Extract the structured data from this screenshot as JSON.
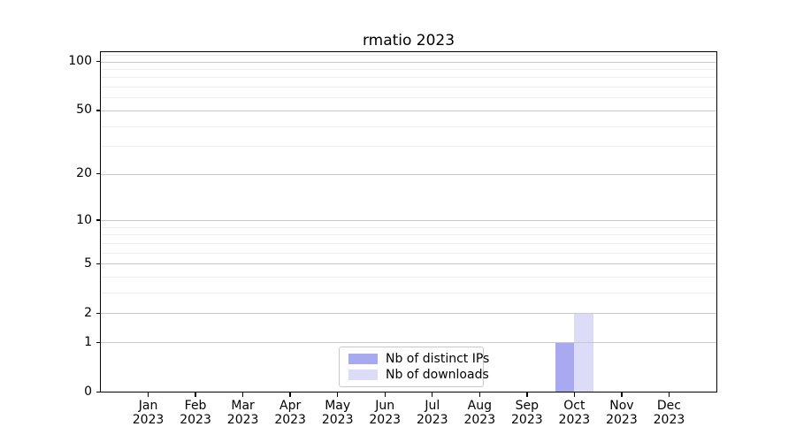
{
  "title": "rmatio 2023",
  "colors": {
    "bar_distinct_ips": "#a9a9f2",
    "bar_downloads": "#dcdcf8",
    "grid_major": "#c9c9c9",
    "grid_minor": "#ededed",
    "spine": "#000000",
    "background": "#ffffff"
  },
  "legend": {
    "position": "lower center",
    "items": [
      {
        "label": "Nb of distinct IPs",
        "color": "#a9a9f2"
      },
      {
        "label": "Nb of downloads",
        "color": "#dcdcf8"
      }
    ]
  },
  "chart_data": {
    "type": "bar",
    "title": "rmatio 2023",
    "categories": [
      "Jan 2023",
      "Feb 2023",
      "Mar 2023",
      "Apr 2023",
      "May 2023",
      "Jun 2023",
      "Jul 2023",
      "Aug 2023",
      "Sep 2023",
      "Oct 2023",
      "Nov 2023",
      "Dec 2023"
    ],
    "x_tick_months": [
      "Jan",
      "Feb",
      "Mar",
      "Apr",
      "May",
      "Jun",
      "Jul",
      "Aug",
      "Sep",
      "Oct",
      "Nov",
      "Dec"
    ],
    "x_tick_year": "2023",
    "series": [
      {
        "name": "Nb of distinct IPs",
        "color": "#a9a9f2",
        "values": [
          0,
          0,
          0,
          0,
          0,
          0,
          0,
          0,
          0,
          1,
          0,
          0
        ]
      },
      {
        "name": "Nb of downloads",
        "color": "#dcdcf8",
        "values": [
          0,
          0,
          0,
          0,
          0,
          0,
          0,
          0,
          0,
          2,
          0,
          0
        ]
      }
    ],
    "xlabel": "",
    "ylabel": "",
    "y_scale": "log1p",
    "y_ticks": [
      0,
      1,
      2,
      5,
      10,
      20,
      50,
      100
    ],
    "y_minor_gridlines": [
      3,
      4,
      6,
      7,
      8,
      9,
      30,
      40,
      60,
      70,
      80,
      90,
      110
    ],
    "ylim": [
      0,
      114
    ],
    "grid": "horizontal-only",
    "legend_position": "lower center"
  }
}
